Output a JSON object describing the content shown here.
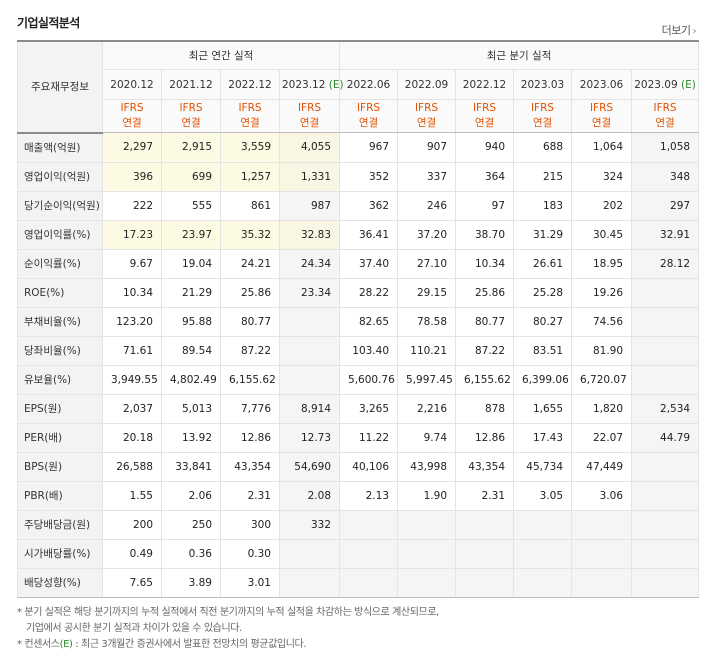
{
  "title": "기업실적분석",
  "more_label": "더보기",
  "more_icon": "›",
  "corner_label": "주요재무정보",
  "group_annual": "최근 연간 실적",
  "group_quarter": "최근 분기 실적",
  "annual_periods": [
    {
      "label": "2020.12",
      "est": ""
    },
    {
      "label": "2021.12",
      "est": ""
    },
    {
      "label": "2022.12",
      "est": ""
    },
    {
      "label": "2023.12",
      "est": "(E)"
    }
  ],
  "quarter_periods": [
    {
      "label": "2022.06",
      "est": ""
    },
    {
      "label": "2022.09",
      "est": ""
    },
    {
      "label": "2022.12",
      "est": ""
    },
    {
      "label": "2023.03",
      "est": ""
    },
    {
      "label": "2023.06",
      "est": ""
    },
    {
      "label": "2023.09",
      "est": "(E)"
    }
  ],
  "ifrs_label": "IFRS",
  "consol_label": "연결",
  "rows": [
    {
      "label": "매출액(억원)",
      "values": [
        "2,297",
        "2,915",
        "3,559",
        "4,055",
        "967",
        "907",
        "940",
        "688",
        "1,064",
        "1,058"
      ]
    },
    {
      "label": "영업이익(억원)",
      "values": [
        "396",
        "699",
        "1,257",
        "1,331",
        "352",
        "337",
        "364",
        "215",
        "324",
        "348"
      ]
    },
    {
      "label": "당기순이익(억원)",
      "values": [
        "222",
        "555",
        "861",
        "987",
        "362",
        "246",
        "97",
        "183",
        "202",
        "297"
      ]
    },
    {
      "label": "영업이익률(%)",
      "values": [
        "17.23",
        "23.97",
        "35.32",
        "32.83",
        "36.41",
        "37.20",
        "38.70",
        "31.29",
        "30.45",
        "32.91"
      ]
    },
    {
      "label": "순이익률(%)",
      "values": [
        "9.67",
        "19.04",
        "24.21",
        "24.34",
        "37.40",
        "27.10",
        "10.34",
        "26.61",
        "18.95",
        "28.12"
      ]
    },
    {
      "label": "ROE(%)",
      "values": [
        "10.34",
        "21.29",
        "25.86",
        "23.34",
        "28.22",
        "29.15",
        "25.86",
        "25.28",
        "19.26",
        ""
      ]
    },
    {
      "label": "부채비율(%)",
      "values": [
        "123.20",
        "95.88",
        "80.77",
        "",
        "82.65",
        "78.58",
        "80.77",
        "80.27",
        "74.56",
        ""
      ]
    },
    {
      "label": "당좌비율(%)",
      "values": [
        "71.61",
        "89.54",
        "87.22",
        "",
        "103.40",
        "110.21",
        "87.22",
        "83.51",
        "81.90",
        ""
      ]
    },
    {
      "label": "유보율(%)",
      "values": [
        "3,949.55",
        "4,802.49",
        "6,155.62",
        "",
        "5,600.76",
        "5,997.45",
        "6,155.62",
        "6,399.06",
        "6,720.07",
        ""
      ]
    },
    {
      "label": "EPS(원)",
      "values": [
        "2,037",
        "5,013",
        "7,776",
        "8,914",
        "3,265",
        "2,216",
        "878",
        "1,655",
        "1,820",
        "2,534"
      ]
    },
    {
      "label": "PER(배)",
      "values": [
        "20.18",
        "13.92",
        "12.86",
        "12.73",
        "11.22",
        "9.74",
        "12.86",
        "17.43",
        "22.07",
        "44.79"
      ]
    },
    {
      "label": "BPS(원)",
      "values": [
        "26,588",
        "33,841",
        "43,354",
        "54,690",
        "40,106",
        "43,998",
        "43,354",
        "45,734",
        "47,449",
        ""
      ]
    },
    {
      "label": "PBR(배)",
      "values": [
        "1.55",
        "2.06",
        "2.31",
        "2.08",
        "2.13",
        "1.90",
        "2.31",
        "3.05",
        "3.06",
        ""
      ]
    },
    {
      "label": "주당배당금(원)",
      "values": [
        "200",
        "250",
        "300",
        "332",
        "",
        "",
        "",
        "",
        "",
        ""
      ]
    },
    {
      "label": "시가배당률(%)",
      "values": [
        "0.49",
        "0.36",
        "0.30",
        "",
        "",
        "",
        "",
        "",
        "",
        ""
      ]
    },
    {
      "label": "배당성향(%)",
      "values": [
        "7.65",
        "3.89",
        "3.01",
        "",
        "",
        "",
        "",
        "",
        "",
        ""
      ]
    }
  ],
  "notes": {
    "line1": "분기 실적은 해당 분기까지의 누적 실적에서 직전 분기까지의 누적 실적을 차감하는 방식으로 계산되므로,",
    "line2": "기업에서 공시한 분기 실적과 차이가 있을 수 있습니다.",
    "line3_prefix": "컨센서스",
    "line3_est": "(E)",
    "line3_suffix": ": 최근 3개월간 증권사에서 발표한 전망치의 평균값입니다.",
    "bullet": "*"
  }
}
